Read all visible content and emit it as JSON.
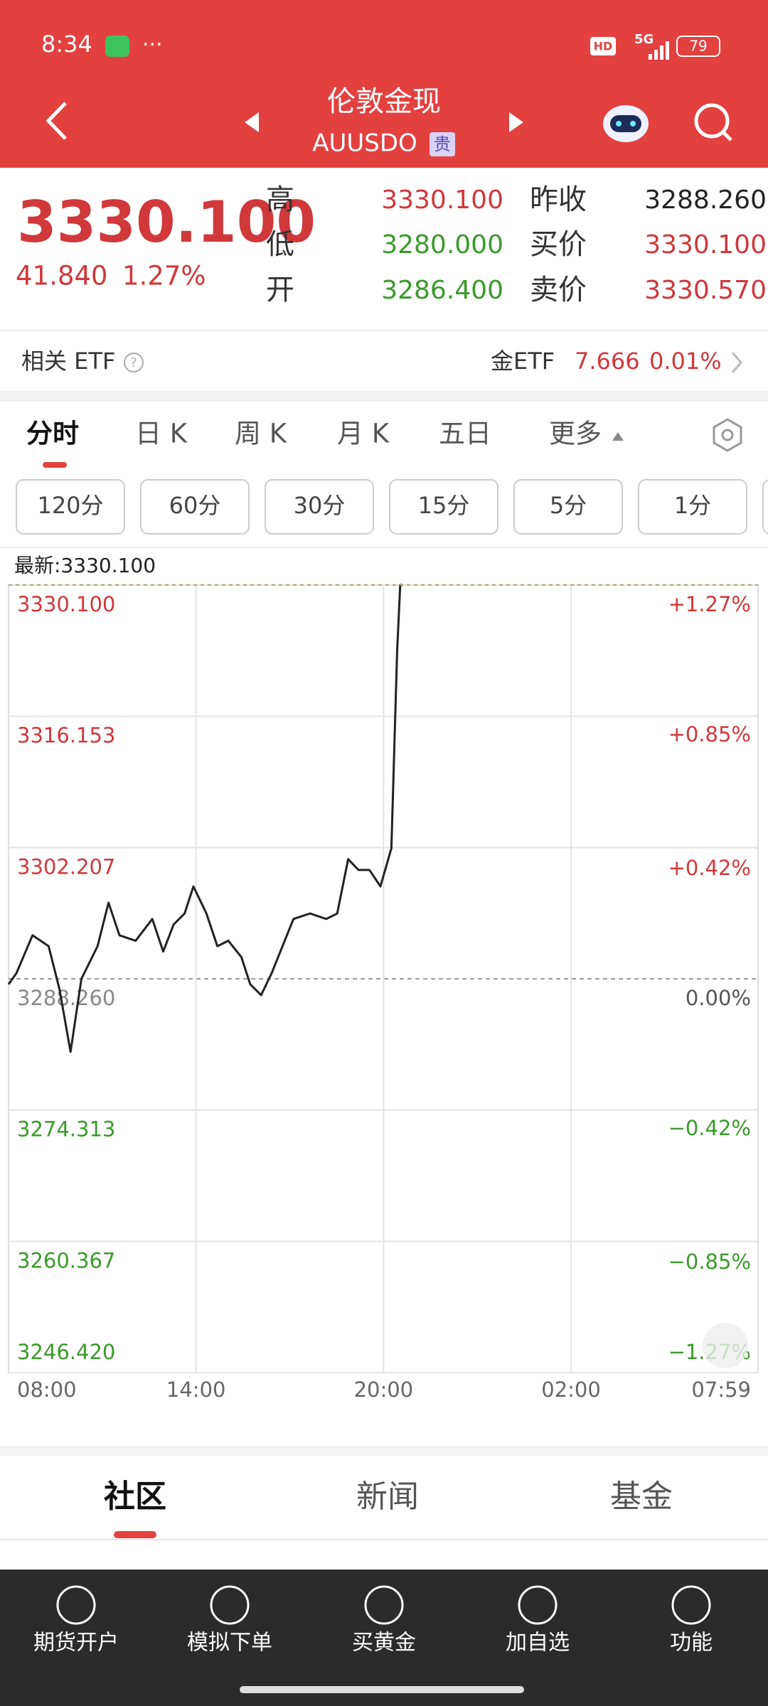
{
  "status_bar": {
    "time": "8:34",
    "hd": "HD",
    "network": "5G",
    "battery": "79"
  },
  "header": {
    "title": "伦敦金现",
    "code": "AUUSDO",
    "tag": "贵"
  },
  "quote": {
    "price": "3330.100",
    "change": "41.840",
    "change_pct": "1.27%",
    "stats": [
      {
        "label": "高",
        "value": "3330.100",
        "color": "#d0383a"
      },
      {
        "label": "低",
        "value": "3280.000",
        "color": "#3a9a2a"
      },
      {
        "label": "开",
        "value": "3286.400",
        "color": "#3a9a2a"
      },
      {
        "label": "昨收",
        "value": "3288.260",
        "color": "#222222"
      },
      {
        "label": "买价",
        "value": "3330.100",
        "color": "#d0383a"
      },
      {
        "label": "卖价",
        "value": "3330.570",
        "color": "#d0383a"
      }
    ]
  },
  "etf": {
    "label": "相关 ETF",
    "name": "金ETF",
    "price": "7.666",
    "change_pct": "0.01%"
  },
  "period_tabs": [
    "分时",
    "日 K",
    "周 K",
    "月 K",
    "五日",
    "更多"
  ],
  "interval_buttons": [
    "120分",
    "60分",
    "30分",
    "15分",
    "5分",
    "1分"
  ],
  "chart_data": {
    "type": "line",
    "annotation": "最新:3330.100",
    "x": [
      "08:00",
      "08:15",
      "08:46",
      "09:17",
      "09:38",
      "09:59",
      "10:20",
      "10:51",
      "11:12",
      "11:33",
      "12:04",
      "12:36",
      "12:57",
      "13:17",
      "13:38",
      "13:55",
      "14:20",
      "14:41",
      "15:02",
      "15:27",
      "15:44",
      "16:05",
      "16:25",
      "16:46",
      "17:07",
      "17:39",
      "18:10",
      "18:31",
      "18:52",
      "19:12",
      "19:33",
      "19:54",
      "20:15",
      "20:26",
      "20:32",
      "20:36"
    ],
    "values": [
      3287.68,
      3288.84,
      3292.88,
      3291.73,
      3287.1,
      3280.5,
      3288.26,
      3291.73,
      3296.35,
      3292.88,
      3292.31,
      3294.62,
      3291.15,
      3294.04,
      3295.2,
      3298.08,
      3295.2,
      3291.73,
      3292.31,
      3290.57,
      3287.68,
      3286.53,
      3288.84,
      3291.73,
      3294.62,
      3295.2,
      3294.62,
      3295.2,
      3300.97,
      3299.82,
      3299.82,
      3298.08,
      3302.13,
      3322.93,
      3330.1,
      3330.1
    ],
    "color": "#222222",
    "xlim": [
      "08:00",
      "07:59"
    ],
    "xticks": [
      "08:00",
      "14:00",
      "20:00",
      "02:00",
      "07:59"
    ],
    "ylim": [
      3246.42,
      3330.1
    ],
    "yticks": [
      {
        "value": 3330.1,
        "label": "3330.100"
      },
      {
        "value": 3316.153,
        "label": "3316.153"
      },
      {
        "value": 3302.207,
        "label": "3302.207"
      },
      {
        "value": 3288.26,
        "label": "3288.260"
      },
      {
        "value": 3274.313,
        "label": "3274.313"
      },
      {
        "value": 3260.367,
        "label": "3260.367"
      },
      {
        "value": 3246.42,
        "label": "3246.420"
      }
    ],
    "y2lim": [
      -1.27,
      1.27
    ],
    "y2ticks": [
      {
        "value": 1.27,
        "label": "+1.27%"
      },
      {
        "value": 0.85,
        "label": "+0.85%"
      },
      {
        "value": 0.42,
        "label": "+0.42%"
      },
      {
        "value": 0,
        "label": "0.00%"
      },
      {
        "value": -0.42,
        "label": "−0.42%"
      },
      {
        "value": -0.85,
        "label": "−0.85%"
      },
      {
        "value": -1.27,
        "label": "−1.27%"
      }
    ],
    "grid": true,
    "up_color": "#d0383a",
    "down_color": "#3a9a2a"
  },
  "content_tabs": [
    "社区",
    "新闻",
    "基金"
  ],
  "bottom_nav": [
    "期货开户",
    "模拟下单",
    "买黄金",
    "加自选",
    "功能"
  ]
}
